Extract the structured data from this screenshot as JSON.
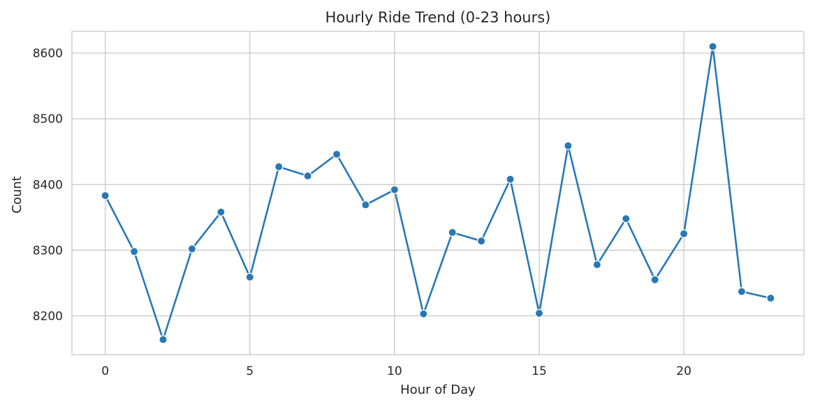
{
  "chart_data": {
    "type": "line",
    "title": "Hourly Ride Trend (0-23 hours)",
    "xlabel": "Hour of Day",
    "ylabel": "Count",
    "xlim": [
      -1.15,
      24.15
    ],
    "ylim": [
      8141,
      8633
    ],
    "xticks": [
      0,
      5,
      10,
      15,
      20
    ],
    "yticks": [
      8200,
      8300,
      8400,
      8500,
      8600
    ],
    "grid": true,
    "legend": "none",
    "series": [
      {
        "color": "#2878b5",
        "marker": "circle",
        "points": [
          {
            "x": 0,
            "y": 8383
          },
          {
            "x": 1,
            "y": 8298
          },
          {
            "x": 2,
            "y": 8164
          },
          {
            "x": 3,
            "y": 8302
          },
          {
            "x": 4,
            "y": 8358
          },
          {
            "x": 5,
            "y": 8259
          },
          {
            "x": 6,
            "y": 8427
          },
          {
            "x": 7,
            "y": 8413
          },
          {
            "x": 8,
            "y": 8446
          },
          {
            "x": 9,
            "y": 8369
          },
          {
            "x": 10,
            "y": 8392
          },
          {
            "x": 11,
            "y": 8203
          },
          {
            "x": 12,
            "y": 8327
          },
          {
            "x": 13,
            "y": 8314
          },
          {
            "x": 14,
            "y": 8408
          },
          {
            "x": 15,
            "y": 8204
          },
          {
            "x": 16,
            "y": 8459
          },
          {
            "x": 17,
            "y": 8278
          },
          {
            "x": 18,
            "y": 8348
          },
          {
            "x": 19,
            "y": 8255
          },
          {
            "x": 20,
            "y": 8325
          },
          {
            "x": 21,
            "y": 8610
          },
          {
            "x": 22,
            "y": 8237
          },
          {
            "x": 23,
            "y": 8227
          }
        ]
      }
    ]
  }
}
